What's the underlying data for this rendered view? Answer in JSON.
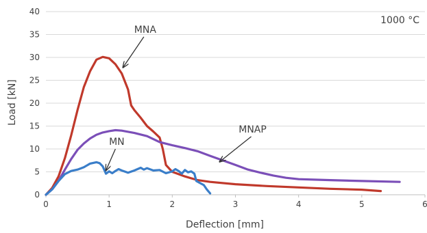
{
  "chart_data": {
    "type": "line",
    "title": "1000 °C",
    "xlabel": "Deflection [mm]",
    "ylabel": "Load [kN]",
    "xlim": [
      0,
      6
    ],
    "ylim": [
      0,
      40
    ],
    "x_ticks": [
      "0",
      "1",
      "2",
      "3",
      "4",
      "5",
      "6"
    ],
    "y_ticks": [
      "0",
      "5",
      "10",
      "15",
      "20",
      "25",
      "30",
      "35",
      "40"
    ],
    "grid": "horizontal",
    "series": [
      {
        "name": "MNA",
        "color": "#c0392b",
        "points": [
          [
            0,
            0
          ],
          [
            0.1,
            1.5
          ],
          [
            0.2,
            4
          ],
          [
            0.3,
            8
          ],
          [
            0.4,
            13
          ],
          [
            0.5,
            18.5
          ],
          [
            0.6,
            23.5
          ],
          [
            0.7,
            27
          ],
          [
            0.8,
            29.5
          ],
          [
            0.9,
            30.1
          ],
          [
            1.0,
            29.8
          ],
          [
            1.1,
            28.5
          ],
          [
            1.2,
            26.5
          ],
          [
            1.3,
            23
          ],
          [
            1.35,
            19.5
          ],
          [
            1.4,
            18.5
          ],
          [
            1.5,
            16.8
          ],
          [
            1.6,
            15
          ],
          [
            1.7,
            13.8
          ],
          [
            1.8,
            12.5
          ],
          [
            1.85,
            10
          ],
          [
            1.9,
            6.5
          ],
          [
            2.0,
            5
          ],
          [
            2.2,
            4
          ],
          [
            2.4,
            3.2
          ],
          [
            2.6,
            2.8
          ],
          [
            3.0,
            2.3
          ],
          [
            3.5,
            1.9
          ],
          [
            4.0,
            1.6
          ],
          [
            4.5,
            1.3
          ],
          [
            5.0,
            1.1
          ],
          [
            5.3,
            0.8
          ]
        ]
      },
      {
        "name": "MNAP",
        "color": "#7b4fb8",
        "points": [
          [
            0,
            0
          ],
          [
            0.1,
            1.2
          ],
          [
            0.2,
            3
          ],
          [
            0.3,
            5.5
          ],
          [
            0.4,
            7.8
          ],
          [
            0.5,
            9.8
          ],
          [
            0.6,
            11.2
          ],
          [
            0.7,
            12.3
          ],
          [
            0.8,
            13.1
          ],
          [
            0.9,
            13.6
          ],
          [
            1.0,
            13.9
          ],
          [
            1.1,
            14.1
          ],
          [
            1.2,
            14.0
          ],
          [
            1.4,
            13.5
          ],
          [
            1.6,
            12.8
          ],
          [
            1.8,
            11.5
          ],
          [
            2.0,
            10.8
          ],
          [
            2.2,
            10.2
          ],
          [
            2.4,
            9.5
          ],
          [
            2.6,
            8.5
          ],
          [
            2.8,
            7.5
          ],
          [
            3.0,
            6.5
          ],
          [
            3.2,
            5.5
          ],
          [
            3.4,
            4.8
          ],
          [
            3.6,
            4.2
          ],
          [
            3.8,
            3.7
          ],
          [
            4.0,
            3.4
          ],
          [
            4.5,
            3.2
          ],
          [
            5.0,
            3.0
          ],
          [
            5.6,
            2.8
          ]
        ]
      },
      {
        "name": "MN",
        "color": "#3a7ec9",
        "points": [
          [
            0,
            0
          ],
          [
            0.1,
            1.2
          ],
          [
            0.2,
            3
          ],
          [
            0.3,
            4.5
          ],
          [
            0.4,
            5.2
          ],
          [
            0.5,
            5.5
          ],
          [
            0.6,
            6
          ],
          [
            0.7,
            6.8
          ],
          [
            0.8,
            7.1
          ],
          [
            0.85,
            6.9
          ],
          [
            0.9,
            6.2
          ],
          [
            0.95,
            4.6
          ],
          [
            1.0,
            5.1
          ],
          [
            1.05,
            4.7
          ],
          [
            1.1,
            5.2
          ],
          [
            1.15,
            5.6
          ],
          [
            1.2,
            5.3
          ],
          [
            1.3,
            4.8
          ],
          [
            1.4,
            5.3
          ],
          [
            1.5,
            5.9
          ],
          [
            1.55,
            5.5
          ],
          [
            1.6,
            5.8
          ],
          [
            1.7,
            5.3
          ],
          [
            1.8,
            5.4
          ],
          [
            1.9,
            4.7
          ],
          [
            2.0,
            5.1
          ],
          [
            2.05,
            5.6
          ],
          [
            2.1,
            5.2
          ],
          [
            2.15,
            4.6
          ],
          [
            2.2,
            5.4
          ],
          [
            2.25,
            4.9
          ],
          [
            2.3,
            5.1
          ],
          [
            2.35,
            4.6
          ],
          [
            2.38,
            3
          ],
          [
            2.42,
            2.7
          ],
          [
            2.5,
            2.1
          ],
          [
            2.55,
            1.1
          ],
          [
            2.6,
            0.3
          ]
        ]
      }
    ],
    "annotations": [
      {
        "text": "MNA",
        "arrow_from": [
          1.55,
          34.5
        ],
        "arrow_to": [
          1.22,
          27.8
        ]
      },
      {
        "text": "MNAP",
        "arrow_from": [
          3.25,
          12.7
        ],
        "arrow_to": [
          2.75,
          7.2
        ]
      },
      {
        "text": "MN",
        "arrow_from": [
          1.1,
          10.0
        ],
        "arrow_to": [
          0.95,
          5.3
        ]
      }
    ]
  }
}
